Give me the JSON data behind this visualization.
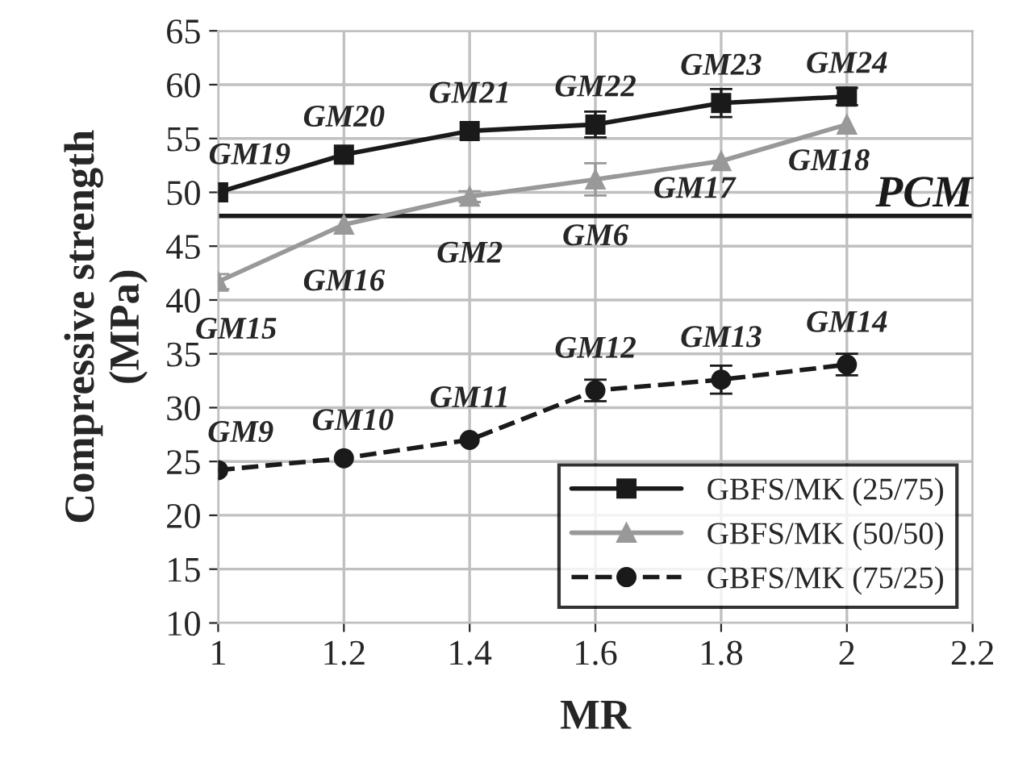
{
  "chart_data": {
    "type": "line",
    "xlabel": "MR",
    "ylabel": "Compressive strength\n(MPa)",
    "x": [
      1,
      1.2,
      1.4,
      1.6,
      1.8,
      2
    ],
    "series": [
      {
        "name": "GBFS/MK (25/75)",
        "color": "#1a1a1a",
        "marker": "square",
        "line_style": "solid",
        "values": [
          50,
          53.5,
          55.7,
          56.3,
          58.3,
          58.9
        ],
        "errors": [
          null,
          null,
          null,
          1.2,
          1.3,
          0.8
        ]
      },
      {
        "name": "GBFS/MK (50/50)",
        "color": "#999999",
        "marker": "triangle",
        "line_style": "solid",
        "values": [
          41.7,
          47,
          49.6,
          51.2,
          52.9,
          56.3
        ],
        "errors": [
          0.7,
          null,
          0.5,
          1.5,
          null,
          null
        ]
      },
      {
        "name": "GBFS/MK (75/25)",
        "color": "#1a1a1a",
        "marker": "circle",
        "line_style": "dashed",
        "values": [
          24.2,
          25.3,
          27,
          31.6,
          32.6,
          34
        ],
        "errors": [
          null,
          null,
          null,
          1.0,
          1.3,
          1.0
        ]
      }
    ],
    "xlim": [
      1,
      2.2
    ],
    "xticks": [
      1,
      1.2,
      1.4,
      1.6,
      1.8,
      2,
      2.2
    ],
    "ylim": [
      10,
      65
    ],
    "yticks": [
      10,
      15,
      20,
      25,
      30,
      35,
      40,
      45,
      50,
      55,
      60,
      65
    ],
    "grid": true,
    "legend": "bottom right",
    "ref_lines": [
      {
        "axis": "y",
        "value": 47.8,
        "label": "PCM",
        "color": "#1a1a1a"
      }
    ],
    "annotations": [
      {
        "text": "GM19",
        "x": 1,
        "y": 50
      },
      {
        "text": "GM20",
        "x": 1.2,
        "y": 53.5
      },
      {
        "text": "GM21",
        "x": 1.4,
        "y": 55.7
      },
      {
        "text": "GM22",
        "x": 1.6,
        "y": 56.3
      },
      {
        "text": "GM23",
        "x": 1.8,
        "y": 58.3
      },
      {
        "text": "GM24",
        "x": 2,
        "y": 58.9
      },
      {
        "text": "GM15",
        "x": 1,
        "y": 41.7
      },
      {
        "text": "GM16",
        "x": 1.2,
        "y": 47
      },
      {
        "text": "GM2",
        "x": 1.4,
        "y": 49.6
      },
      {
        "text": "GM6",
        "x": 1.6,
        "y": 51.2
      },
      {
        "text": "GM17",
        "x": 1.8,
        "y": 52.9
      },
      {
        "text": "GM18",
        "x": 2,
        "y": 56.3
      },
      {
        "text": "GM9",
        "x": 1,
        "y": 24.2
      },
      {
        "text": "GM10",
        "x": 1.2,
        "y": 25.3
      },
      {
        "text": "GM11",
        "x": 1.4,
        "y": 27
      },
      {
        "text": "GM12",
        "x": 1.6,
        "y": 31.6
      },
      {
        "text": "GM13",
        "x": 1.8,
        "y": 32.6
      },
      {
        "text": "GM14",
        "x": 2,
        "y": 34
      }
    ]
  }
}
